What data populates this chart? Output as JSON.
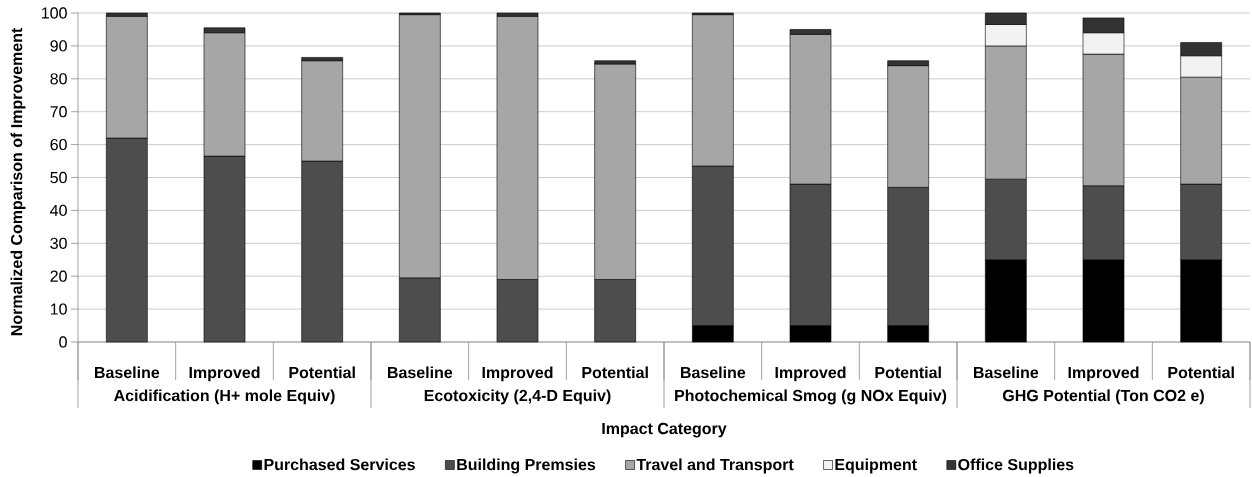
{
  "chart_data": {
    "type": "bar",
    "stacked": true,
    "xlabel": "Impact Category",
    "ylabel": "Normalized Comparison of Improvement",
    "categories": [
      "Baseline",
      "Improved",
      "Potential",
      "Baseline",
      "Improved",
      "Potential",
      "Baseline",
      "Improved",
      "Potential",
      "Baseline",
      "Improved",
      "Potential"
    ],
    "annotations": [
      "Acidification (H+ mole Equiv)",
      "Ecotoxicity (2,4-D Equiv)",
      "Photochemical Smog (g NOx Equiv)",
      "GHG Potential (Ton CO2 e)"
    ],
    "series": [
      {
        "name": "Purchased Services",
        "color": "#000000",
        "values": [
          null,
          null,
          null,
          null,
          null,
          null,
          5,
          5,
          5,
          25,
          25,
          25
        ]
      },
      {
        "name": "Building Premsies",
        "color": "#4d4d4d",
        "values": [
          62,
          56.5,
          55,
          19.5,
          19,
          19,
          48.5,
          43,
          42,
          24.5,
          22.5,
          23
        ]
      },
      {
        "name": "Travel and Transport",
        "color": "#a6a6a6",
        "values": [
          37,
          37.5,
          30.5,
          80,
          80,
          65.5,
          46,
          45.5,
          37,
          40.5,
          40,
          32.5
        ]
      },
      {
        "name": "Equipment",
        "color": "#f2f2f2",
        "values": [
          null,
          null,
          null,
          null,
          null,
          null,
          null,
          null,
          null,
          6.5,
          6.5,
          6.5
        ]
      },
      {
        "name": "Office Supplies",
        "color": "#333333",
        "values": [
          1,
          1.5,
          1,
          0.5,
          1,
          1,
          0.5,
          1.5,
          1.5,
          3.5,
          4.5,
          4
        ]
      }
    ],
    "ylim": [
      0,
      100
    ],
    "yticks": [
      0,
      10,
      20,
      30,
      40,
      50,
      60,
      70,
      80,
      90,
      100
    ],
    "grid": "y",
    "legend": "bottom"
  }
}
